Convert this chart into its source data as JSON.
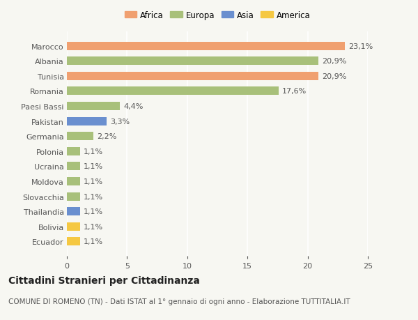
{
  "categories": [
    "Ecuador",
    "Bolivia",
    "Thailandia",
    "Slovacchia",
    "Moldova",
    "Ucraina",
    "Polonia",
    "Germania",
    "Pakistan",
    "Paesi Bassi",
    "Romania",
    "Tunisia",
    "Albania",
    "Marocco"
  ],
  "values": [
    1.1,
    1.1,
    1.1,
    1.1,
    1.1,
    1.1,
    1.1,
    2.2,
    3.3,
    4.4,
    17.6,
    20.9,
    20.9,
    23.1
  ],
  "colors": [
    "#f5c842",
    "#f5c842",
    "#6a8fcf",
    "#a8c07a",
    "#a8c07a",
    "#a8c07a",
    "#a8c07a",
    "#a8c07a",
    "#6a8fcf",
    "#a8c07a",
    "#a8c07a",
    "#f0a070",
    "#a8c07a",
    "#f0a070"
  ],
  "labels": [
    "1,1%",
    "1,1%",
    "1,1%",
    "1,1%",
    "1,1%",
    "1,1%",
    "1,1%",
    "2,2%",
    "3,3%",
    "4,4%",
    "17,6%",
    "20,9%",
    "20,9%",
    "23,1%"
  ],
  "legend": [
    {
      "label": "Africa",
      "color": "#f0a070"
    },
    {
      "label": "Europa",
      "color": "#a8c07a"
    },
    {
      "label": "Asia",
      "color": "#6a8fcf"
    },
    {
      "label": "America",
      "color": "#f5c842"
    }
  ],
  "title": "Cittadini Stranieri per Cittadinanza",
  "subtitle": "COMUNE DI ROMENO (TN) - Dati ISTAT al 1° gennaio di ogni anno - Elaborazione TUTTITALIA.IT",
  "xlim": [
    0,
    25
  ],
  "xticks": [
    0,
    5,
    10,
    15,
    20,
    25
  ],
  "background_color": "#f7f7f2",
  "bar_height": 0.55,
  "title_fontsize": 10,
  "subtitle_fontsize": 7.5,
  "tick_fontsize": 8,
  "label_fontsize": 8
}
